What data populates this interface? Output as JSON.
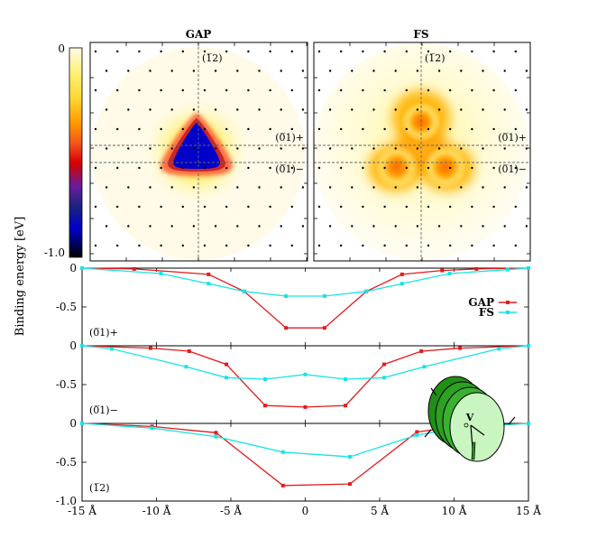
{
  "figure": {
    "ylabel": "Binding energy [eV]",
    "colorbar": {
      "top_label": "0",
      "bottom_label": "-1.0",
      "colors": [
        "#fefce8",
        "#fff176",
        "#fdd835",
        "#ff9800",
        "#f4511e",
        "#d50000",
        "#6a1b9a",
        "#1a237e",
        "#0000cc",
        "#000000"
      ]
    },
    "maps": [
      {
        "title": "GAP",
        "label_top": "(1̅2)",
        "label_mid_upper": "(0̅1)+",
        "label_mid_lower": "(0̅1)−",
        "type": "triangle-gap"
      },
      {
        "title": "FS",
        "label_top": "(1̅2)",
        "label_mid_upper": "(0̅1)+",
        "label_mid_lower": "(0̅1)−",
        "type": "fermi-surface"
      }
    ],
    "legend": [
      {
        "name": "GAP",
        "color": "#e41a1c"
      },
      {
        "name": "FS",
        "color": "#1be3e3"
      }
    ],
    "inset_label": "V"
  },
  "chart_data": [
    {
      "type": "line",
      "panel_label": "(0̅1)+",
      "x_unit": "Å",
      "ylim": [
        -1.0,
        0
      ],
      "yticks": [
        "0",
        "-0.5"
      ],
      "series": [
        {
          "name": "GAP",
          "color": "#e41a1c",
          "x": [
            -15,
            -11.5,
            -6.5,
            -4.1,
            -1.3,
            1.3,
            4.1,
            6.5,
            9.2,
            11.5,
            15
          ],
          "y": [
            0,
            -0.01,
            -0.08,
            -0.3,
            -0.77,
            -0.77,
            -0.3,
            -0.08,
            -0.03,
            -0.01,
            0
          ]
        },
        {
          "name": "FS",
          "color": "#1be3e3",
          "x": [
            -15,
            -9.7,
            -6.5,
            -4.1,
            -1.3,
            1.3,
            4.1,
            6.5,
            9.7,
            13.6,
            15
          ],
          "y": [
            0,
            -0.07,
            -0.2,
            -0.3,
            -0.36,
            -0.36,
            -0.3,
            -0.2,
            -0.07,
            -0.02,
            0
          ]
        }
      ]
    },
    {
      "type": "line",
      "panel_label": "(0̅1)−",
      "x_unit": "Å",
      "ylim": [
        -1.0,
        0
      ],
      "yticks": [
        "0",
        "-0.5"
      ],
      "series": [
        {
          "name": "GAP",
          "color": "#e41a1c",
          "x": [
            -15,
            -10.4,
            -7.8,
            -5.3,
            -2.7,
            0,
            2.7,
            5.3,
            7.8,
            10.4,
            15
          ],
          "y": [
            0,
            -0.03,
            -0.07,
            -0.24,
            -0.77,
            -0.79,
            -0.77,
            -0.24,
            -0.07,
            -0.03,
            0
          ]
        },
        {
          "name": "FS",
          "color": "#1be3e3",
          "x": [
            -15,
            -13,
            -8,
            -5.3,
            -2.7,
            0,
            2.7,
            5.3,
            8,
            13,
            15
          ],
          "y": [
            0,
            -0.04,
            -0.27,
            -0.41,
            -0.43,
            -0.37,
            -0.43,
            -0.41,
            -0.27,
            -0.04,
            0
          ]
        }
      ]
    },
    {
      "type": "line",
      "panel_label": "(1̅2)",
      "x_unit": "Å",
      "xlim": [
        -15,
        15
      ],
      "xticks": [
        "-15 Å",
        "-10 Å",
        "-5 Å",
        "0",
        "5 Å",
        "10 Å",
        "15 Å"
      ],
      "ylim": [
        -1.0,
        0
      ],
      "yticks": [
        "0",
        "-0.5",
        "-1.0"
      ],
      "series": [
        {
          "name": "GAP",
          "color": "#e41a1c",
          "x": [
            -15,
            -10.3,
            -6,
            -1.5,
            3,
            7.5,
            10.3,
            15
          ],
          "y": [
            0,
            -0.04,
            -0.12,
            -0.8,
            -0.78,
            -0.11,
            -0.04,
            0
          ]
        },
        {
          "name": "FS",
          "color": "#1be3e3",
          "x": [
            -15,
            -10.3,
            -6,
            -1.5,
            3,
            7.5,
            10.3,
            15
          ],
          "y": [
            0,
            -0.06,
            -0.17,
            -0.37,
            -0.43,
            -0.15,
            -0.06,
            0
          ]
        }
      ]
    }
  ]
}
